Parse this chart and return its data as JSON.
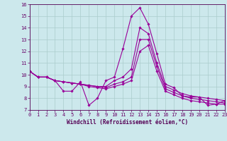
{
  "xlabel": "Windchill (Refroidissement éolien,°C)",
  "background_color": "#cce8ec",
  "grid_color": "#aacccc",
  "line_color": "#990099",
  "x": [
    0,
    1,
    2,
    3,
    4,
    5,
    6,
    7,
    8,
    9,
    10,
    11,
    12,
    13,
    14,
    15,
    16,
    17,
    18,
    19,
    20,
    21,
    22,
    23
  ],
  "series": [
    [
      10.3,
      9.8,
      9.8,
      9.5,
      8.6,
      8.6,
      9.4,
      7.4,
      8.0,
      9.5,
      9.8,
      12.2,
      15.0,
      15.7,
      14.3,
      11.8,
      9.2,
      8.9,
      8.2,
      8.1,
      8.1,
      7.4,
      7.5,
      7.8
    ],
    [
      10.3,
      9.8,
      9.8,
      9.5,
      9.4,
      9.3,
      9.2,
      9.1,
      9.0,
      9.0,
      9.5,
      9.8,
      10.5,
      14.0,
      13.5,
      11.0,
      9.0,
      8.7,
      8.4,
      8.2,
      8.1,
      8.0,
      7.9,
      7.8
    ],
    [
      10.3,
      9.8,
      9.8,
      9.5,
      9.4,
      9.3,
      9.2,
      9.1,
      9.0,
      8.9,
      9.2,
      9.4,
      9.8,
      13.0,
      13.0,
      10.7,
      8.8,
      8.5,
      8.2,
      8.0,
      7.9,
      7.8,
      7.7,
      7.6
    ],
    [
      10.3,
      9.8,
      9.8,
      9.5,
      9.4,
      9.3,
      9.2,
      9.0,
      8.9,
      8.8,
      9.0,
      9.2,
      9.5,
      12.0,
      12.5,
      10.3,
      8.6,
      8.3,
      8.0,
      7.8,
      7.7,
      7.6,
      7.5,
      7.5
    ]
  ],
  "ylim": [
    7,
    16
  ],
  "xlim": [
    0,
    23
  ],
  "yticks": [
    7,
    8,
    9,
    10,
    11,
    12,
    13,
    14,
    15,
    16
  ],
  "xticks": [
    0,
    1,
    2,
    3,
    4,
    5,
    6,
    7,
    8,
    9,
    10,
    11,
    12,
    13,
    14,
    15,
    16,
    17,
    18,
    19,
    20,
    21,
    22,
    23
  ]
}
